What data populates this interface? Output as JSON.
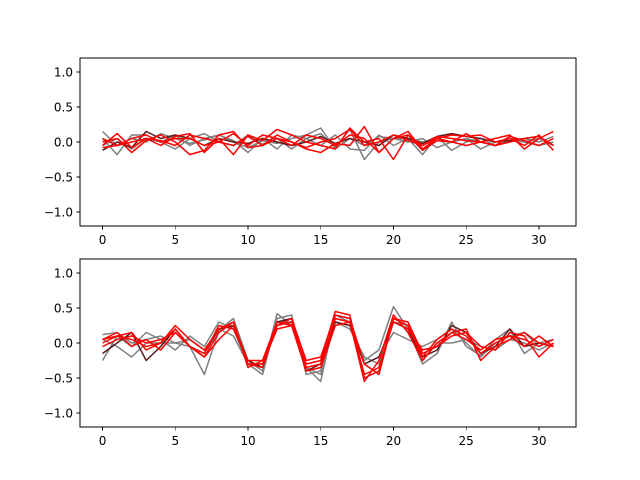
{
  "chart_data": [
    {
      "type": "line",
      "xlim": [
        -1.55,
        32.55
      ],
      "ylim": [
        -1.2,
        1.2
      ],
      "xticks": [
        0,
        5,
        10,
        15,
        20,
        25,
        30
      ],
      "yticks": [
        -1.0,
        -0.5,
        0.0,
        0.5,
        1.0
      ],
      "xtick_labels": [
        "0",
        "5",
        "10",
        "15",
        "20",
        "25",
        "30"
      ],
      "ytick_labels": [
        "−1.0",
        "−0.5",
        "0.0",
        "0.5",
        "1.0"
      ],
      "grid": false,
      "series": [
        {
          "color": "#808080",
          "values": [
            0.15,
            -0.05,
            0.05,
            0.0,
            0.12,
            0.05,
            -0.02,
            0.03,
            0.1,
            0.0,
            -0.08,
            0.02,
            -0.02,
            0.05,
            0.1,
            0.2,
            -0.1,
            0.05,
            -0.05,
            0.08,
            0.05,
            0.0,
            0.05,
            -0.08,
            0.0,
            0.05,
            -0.1,
            0.0,
            0.05,
            0.0,
            0.05,
            -0.05
          ]
        },
        {
          "color": "#808080",
          "values": [
            0.05,
            -0.18,
            0.1,
            0.1,
            0.0,
            -0.1,
            0.05,
            0.12,
            0.0,
            -0.05,
            0.1,
            -0.03,
            0.05,
            -0.1,
            0.05,
            0.12,
            -0.08,
            0.18,
            -0.25,
            0.0,
            0.05,
            0.05,
            -0.18,
            0.08,
            -0.12,
            0.0,
            0.05,
            -0.05,
            0.02,
            0.05,
            0.0,
            0.08
          ]
        },
        {
          "color": "#808080",
          "values": [
            -0.05,
            0.05,
            -0.1,
            0.05,
            0.0,
            0.1,
            -0.05,
            0.05,
            0.1,
            0.02,
            -0.15,
            0.05,
            -0.1,
            0.1,
            0.05,
            -0.05,
            0.1,
            -0.1,
            -0.12,
            0.1,
            -0.05,
            0.05,
            0.0,
            0.05,
            0.0,
            0.05,
            0.0,
            -0.05,
            0.02,
            0.0,
            -0.05,
            0.0
          ]
        },
        {
          "color": "#5a1a1a",
          "values": [
            -0.12,
            0.0,
            -0.08,
            0.15,
            0.05,
            0.1,
            0.05,
            -0.05,
            0.05,
            0.0,
            -0.02,
            0.05,
            0.0,
            -0.05,
            0.0,
            0.08,
            -0.02,
            0.05,
            0.0,
            -0.05,
            0.1,
            0.05,
            -0.02,
            0.08,
            0.12,
            0.08,
            0.05,
            0.0,
            0.02,
            0.05,
            0.08,
            -0.05
          ]
        },
        {
          "color": "#ff0000",
          "values": [
            0.05,
            -0.05,
            0.0,
            0.05,
            0.02,
            -0.05,
            0.1,
            0.05,
            0.0,
            0.12,
            -0.05,
            0.1,
            0.05,
            0.0,
            -0.08,
            0.0,
            0.05,
            0.18,
            -0.05,
            0.0,
            0.1,
            0.02,
            -0.05,
            0.08,
            0.05,
            0.02,
            0.0,
            -0.05,
            0.08,
            0.02,
            -0.05,
            0.05
          ]
        },
        {
          "color": "#ff0000",
          "values": [
            -0.05,
            0.12,
            -0.08,
            0.05,
            -0.05,
            0.08,
            0.12,
            -0.15,
            0.05,
            -0.18,
            0.1,
            0.02,
            0.18,
            0.1,
            0.0,
            -0.05,
            -0.1,
            0.2,
            0.0,
            0.05,
            -0.25,
            0.1,
            -0.05,
            0.05,
            0.1,
            0.08,
            0.1,
            0.0,
            0.05,
            -0.05,
            0.1,
            -0.12
          ]
        },
        {
          "color": "#ff0000",
          "values": [
            -0.08,
            -0.05,
            0.05,
            0.1,
            0.0,
            0.05,
            0.05,
            -0.05,
            0.0,
            -0.05,
            0.08,
            -0.05,
            0.1,
            0.0,
            -0.1,
            -0.15,
            -0.02,
            -0.05,
            0.22,
            -0.15,
            0.05,
            0.15,
            -0.1,
            0.05,
            0.0,
            -0.05,
            0.0,
            0.05,
            0.1,
            -0.1,
            0.05,
            0.15
          ]
        },
        {
          "color": "#ff0000",
          "values": [
            0.0,
            0.05,
            -0.15,
            0.02,
            0.1,
            0.0,
            -0.18,
            -0.12,
            0.1,
            0.15,
            -0.08,
            -0.05,
            0.05,
            -0.05,
            0.1,
            0.05,
            -0.05,
            0.1,
            0.05,
            -0.15,
            0.05,
            0.1,
            -0.12,
            0.02,
            0.0,
            0.12,
            0.0,
            -0.05,
            0.0,
            0.05,
            0.08,
            -0.05
          ]
        }
      ]
    },
    {
      "type": "line",
      "xlim": [
        -1.55,
        32.55
      ],
      "ylim": [
        -1.2,
        1.2
      ],
      "xticks": [
        0,
        5,
        10,
        15,
        20,
        25,
        30
      ],
      "yticks": [
        -1.0,
        -0.5,
        0.0,
        0.5,
        1.0
      ],
      "xtick_labels": [
        "0",
        "5",
        "10",
        "15",
        "20",
        "25",
        "30"
      ],
      "ytick_labels": [
        "−1.0",
        "−0.5",
        "0.0",
        "0.5",
        "1.0"
      ],
      "grid": false,
      "series": [
        {
          "color": "#808080",
          "values": [
            0.12,
            0.15,
            0.0,
            0.05,
            0.1,
            0.0,
            -0.05,
            -0.45,
            0.18,
            0.35,
            -0.25,
            -0.4,
            0.42,
            0.25,
            -0.35,
            -0.55,
            0.4,
            0.3,
            -0.25,
            -0.1,
            0.52,
            0.2,
            -0.3,
            -0.15,
            0.3,
            -0.05,
            -0.18,
            0.05,
            0.2,
            -0.15,
            0.0,
            0.05
          ]
        },
        {
          "color": "#808080",
          "values": [
            -0.25,
            0.1,
            -0.05,
            0.15,
            0.05,
            -0.1,
            0.1,
            -0.05,
            0.3,
            0.2,
            -0.3,
            -0.45,
            0.35,
            0.4,
            -0.45,
            -0.4,
            0.35,
            0.3,
            -0.3,
            -0.2,
            0.15,
            0.05,
            -0.05,
            0.05,
            0.2,
            0.0,
            -0.2,
            0.0,
            0.1,
            0.15,
            -0.05,
            0.05
          ]
        },
        {
          "color": "#808080",
          "values": [
            0.05,
            -0.05,
            -0.2,
            0.0,
            0.0,
            0.0,
            0.05,
            -0.1,
            0.2,
            0.1,
            -0.3,
            -0.3,
            0.3,
            0.3,
            -0.35,
            -0.45,
            0.3,
            0.2,
            -0.2,
            -0.3,
            0.3,
            0.25,
            -0.25,
            0.0,
            0.0,
            0.05,
            -0.05,
            -0.1,
            0.05,
            0.0,
            -0.1,
            0.0
          ]
        },
        {
          "color": "#5a1a1a",
          "values": [
            -0.15,
            0.0,
            0.15,
            -0.25,
            -0.05,
            0.2,
            -0.05,
            -0.15,
            0.2,
            0.25,
            -0.25,
            -0.35,
            0.3,
            0.35,
            -0.4,
            -0.3,
            0.3,
            0.25,
            -0.3,
            -0.2,
            0.3,
            0.2,
            -0.2,
            -0.1,
            0.25,
            0.15,
            -0.15,
            -0.05,
            0.2,
            -0.05,
            0.0,
            -0.05
          ]
        },
        {
          "color": "#ff0000",
          "values": [
            0.05,
            0.1,
            0.15,
            -0.1,
            0.0,
            0.2,
            -0.05,
            -0.2,
            0.15,
            0.3,
            -0.3,
            -0.35,
            0.25,
            0.3,
            -0.35,
            -0.3,
            0.35,
            0.3,
            -0.45,
            -0.35,
            0.3,
            0.2,
            -0.1,
            -0.05,
            0.15,
            0.05,
            -0.1,
            0.05,
            0.1,
            -0.05,
            0.1,
            -0.05
          ]
        },
        {
          "color": "#ff0000",
          "values": [
            0.05,
            0.15,
            -0.05,
            0.05,
            -0.1,
            0.15,
            -0.05,
            -0.15,
            0.25,
            0.2,
            -0.25,
            -0.25,
            0.3,
            0.25,
            -0.3,
            -0.25,
            0.45,
            0.4,
            -0.5,
            -0.4,
            0.35,
            0.25,
            -0.2,
            0.05,
            0.2,
            0.1,
            -0.15,
            0.0,
            0.1,
            0.05,
            -0.05,
            0.05
          ]
        },
        {
          "color": "#ff0000",
          "values": [
            0.0,
            0.1,
            0.05,
            -0.05,
            0.0,
            0.25,
            0.05,
            -0.1,
            0.2,
            0.3,
            -0.35,
            -0.25,
            0.25,
            0.35,
            -0.25,
            -0.2,
            0.4,
            0.35,
            -0.3,
            -0.45,
            0.35,
            0.3,
            -0.15,
            -0.05,
            0.1,
            0.15,
            -0.05,
            -0.1,
            0.15,
            0.1,
            -0.2,
            0.0
          ]
        },
        {
          "color": "#ff0000",
          "values": [
            -0.05,
            0.05,
            0.1,
            0.0,
            0.05,
            0.15,
            -0.05,
            -0.2,
            0.05,
            0.25,
            -0.3,
            -0.3,
            0.2,
            0.25,
            -0.4,
            -0.35,
            0.25,
            0.3,
            -0.55,
            -0.25,
            0.4,
            0.15,
            -0.25,
            0.0,
            0.15,
            0.2,
            -0.25,
            -0.05,
            0.05,
            0.15,
            0.0,
            -0.05
          ]
        }
      ]
    }
  ]
}
